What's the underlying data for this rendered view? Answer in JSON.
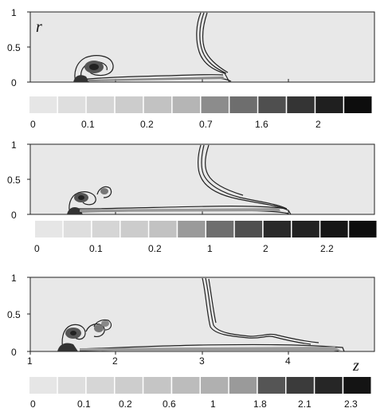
{
  "figure": {
    "r_label": "r",
    "z_label": "z",
    "panels": [
      {
        "y_ticks": [
          "1",
          "0.5",
          "0"
        ],
        "colorbar": {
          "shades": [
            "#e6e6e6",
            "#dedede",
            "#d5d5d5",
            "#cccccc",
            "#c2c2c2",
            "#b5b5b5",
            "#8c8c8c",
            "#6e6e6e",
            "#4f4f4f",
            "#343434",
            "#1f1f1f",
            "#0d0d0d"
          ],
          "labels": [
            "0",
            "0.1",
            "0.2",
            "0.7",
            "1.6",
            "2"
          ]
        }
      },
      {
        "y_ticks": [
          "1",
          "0.5",
          "0"
        ],
        "colorbar": {
          "shades": [
            "#e6e6e6",
            "#dedede",
            "#d5d5d5",
            "#cccccc",
            "#c2c2c2",
            "#9a9a9a",
            "#6e6e6e",
            "#4f4f4f",
            "#2a2a2a",
            "#222222",
            "#161616",
            "#0d0d0d"
          ],
          "labels": [
            "0",
            "0.1",
            "0.2",
            "1",
            "2",
            "2.2"
          ]
        }
      },
      {
        "y_ticks": [
          "1",
          "0.5",
          "0"
        ],
        "x_ticks": [
          "1",
          "2",
          "3",
          "4"
        ],
        "colorbar": {
          "shades": [
            "#e6e6e6",
            "#dedede",
            "#d6d6d6",
            "#cdcdcd",
            "#c5c5c5",
            "#bcbcbc",
            "#b0b0b0",
            "#9a9a9a",
            "#555555",
            "#3b3b3b",
            "#262626",
            "#141414"
          ],
          "labels": [
            "0",
            "0.1",
            "0.2",
            "0.6",
            "1",
            "1.8",
            "2.1",
            "2.3"
          ]
        }
      }
    ]
  }
}
